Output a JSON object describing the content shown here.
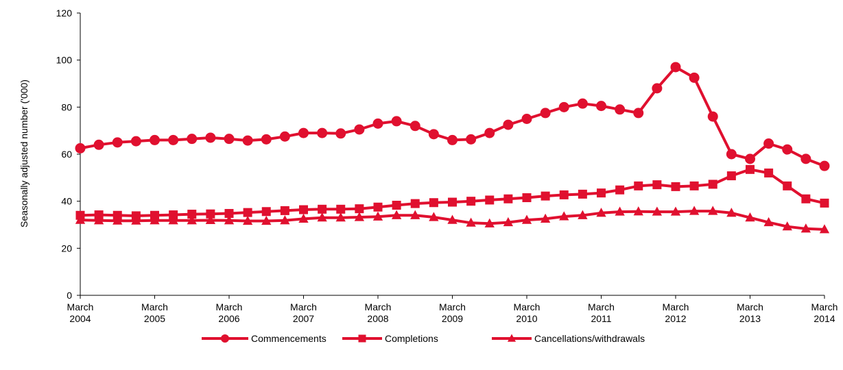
{
  "chart_data": {
    "type": "line",
    "title": "",
    "xlabel": "",
    "ylabel": "Seasonally adjusted number ('000)",
    "ylim": [
      0,
      120
    ],
    "yticks": [
      0,
      20,
      40,
      60,
      80,
      100,
      120
    ],
    "grid": false,
    "legend_position": "bottom",
    "series_color": "#E0102F",
    "x_tick_labels": [
      {
        "line1": "March",
        "line2": "2004"
      },
      {
        "line1": "March",
        "line2": "2005"
      },
      {
        "line1": "March",
        "line2": "2006"
      },
      {
        "line1": "March",
        "line2": "2007"
      },
      {
        "line1": "March",
        "line2": "2008"
      },
      {
        "line1": "March",
        "line2": "2009"
      },
      {
        "line1": "March",
        "line2": "2010"
      },
      {
        "line1": "March",
        "line2": "2011"
      },
      {
        "line1": "March",
        "line2": "2012"
      },
      {
        "line1": "March",
        "line2": "2013"
      },
      {
        "line1": "March",
        "line2": "2014"
      }
    ],
    "x": [
      "Mar 2004",
      "Jun 2004",
      "Sep 2004",
      "Dec 2004",
      "Mar 2005",
      "Jun 2005",
      "Sep 2005",
      "Dec 2005",
      "Mar 2006",
      "Jun 2006",
      "Sep 2006",
      "Dec 2006",
      "Mar 2007",
      "Jun 2007",
      "Sep 2007",
      "Dec 2007",
      "Mar 2008",
      "Jun 2008",
      "Sep 2008",
      "Dec 2008",
      "Mar 2009",
      "Jun 2009",
      "Sep 2009",
      "Dec 2009",
      "Mar 2010",
      "Jun 2010",
      "Sep 2010",
      "Dec 2010",
      "Mar 2011",
      "Jun 2011",
      "Sep 2011",
      "Dec 2011",
      "Mar 2012",
      "Jun 2012",
      "Sep 2012",
      "Dec 2012",
      "Mar 2013",
      "Jun 2013",
      "Sep 2013",
      "Dec 2013",
      "Mar 2014"
    ],
    "series": [
      {
        "name": "Commencements",
        "marker": "circle",
        "values": [
          62.5,
          64,
          65,
          65.5,
          66,
          66,
          66.5,
          67,
          66.5,
          65.8,
          66.3,
          67.5,
          69,
          69,
          68.8,
          70.5,
          73,
          74,
          72,
          68.5,
          66,
          66.3,
          69,
          72.5,
          75,
          77.5,
          80,
          81.5,
          80.5,
          79,
          77.5,
          88,
          97,
          92.5,
          76,
          60,
          58,
          64.5,
          62,
          58,
          55
        ]
      },
      {
        "name": "Completions",
        "marker": "square",
        "values": [
          34,
          34.2,
          34,
          33.8,
          34,
          34.2,
          34.5,
          34.6,
          34.8,
          35.2,
          35.6,
          36,
          36.4,
          36.6,
          36.6,
          36.8,
          37.5,
          38.3,
          39,
          39.4,
          39.6,
          40,
          40.5,
          41,
          41.5,
          42.2,
          42.7,
          43,
          43.5,
          44.8,
          46.5,
          47,
          46.2,
          46.5,
          47.2,
          50.8,
          53.5,
          52,
          46.5,
          41,
          39.2
        ]
      },
      {
        "name": "Cancellations/withdrawals",
        "marker": "triangle",
        "values": [
          32,
          31.8,
          31.7,
          31.7,
          31.8,
          31.8,
          31.8,
          31.9,
          31.8,
          31.6,
          31.6,
          31.8,
          32.5,
          33,
          33,
          33.2,
          33.4,
          34,
          34,
          33.2,
          32,
          30.8,
          30.5,
          31,
          32,
          32.5,
          33.5,
          34,
          35,
          35.5,
          35.6,
          35.5,
          35.5,
          35.8,
          35.8,
          35,
          33,
          31,
          29.2,
          28.3,
          28
        ]
      }
    ]
  }
}
